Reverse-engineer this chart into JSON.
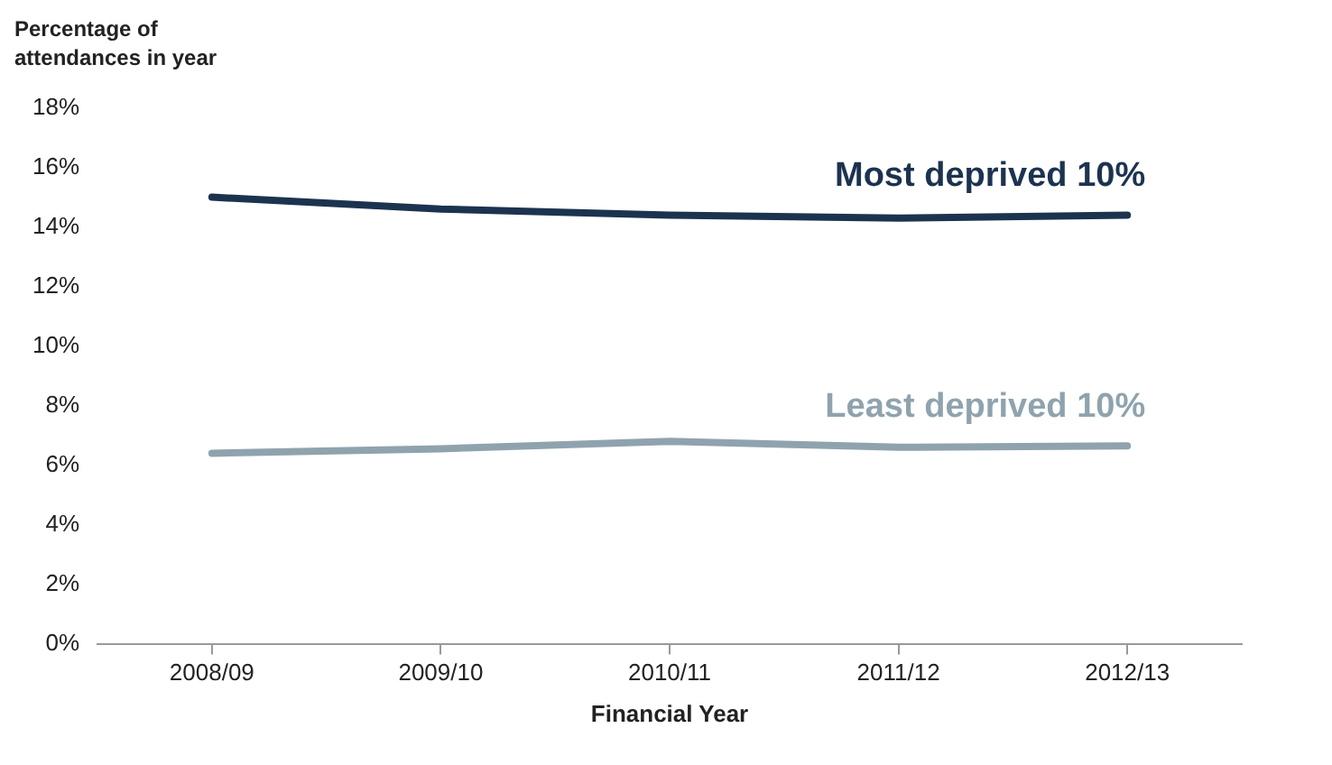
{
  "chart_data": {
    "type": "line",
    "ylabel": "Percentage of attendances in year",
    "xlabel": "Financial Year",
    "categories": [
      "2008/09",
      "2009/10",
      "2010/11",
      "2011/12",
      "2012/13"
    ],
    "series": [
      {
        "name": "Most deprived 10%",
        "color": "#1c3350",
        "values": [
          15.0,
          14.6,
          14.4,
          14.3,
          14.4
        ]
      },
      {
        "name": "Least deprived 10%",
        "color": "#8fa3ae",
        "values": [
          6.4,
          6.55,
          6.8,
          6.6,
          6.65
        ]
      }
    ],
    "ylim": [
      0,
      18
    ],
    "yticks": [
      {
        "value": 0,
        "label": "0%"
      },
      {
        "value": 2,
        "label": "2%"
      },
      {
        "value": 4,
        "label": "4%"
      },
      {
        "value": 6,
        "label": "6%"
      },
      {
        "value": 8,
        "label": "8%"
      },
      {
        "value": 10,
        "label": "10%"
      },
      {
        "value": 12,
        "label": "12%"
      },
      {
        "value": 14,
        "label": "14%"
      },
      {
        "value": 16,
        "label": "16%"
      },
      {
        "value": 18,
        "label": "18%"
      }
    ],
    "grid": false,
    "legend": false,
    "marker": "none",
    "line_style": "solid"
  }
}
